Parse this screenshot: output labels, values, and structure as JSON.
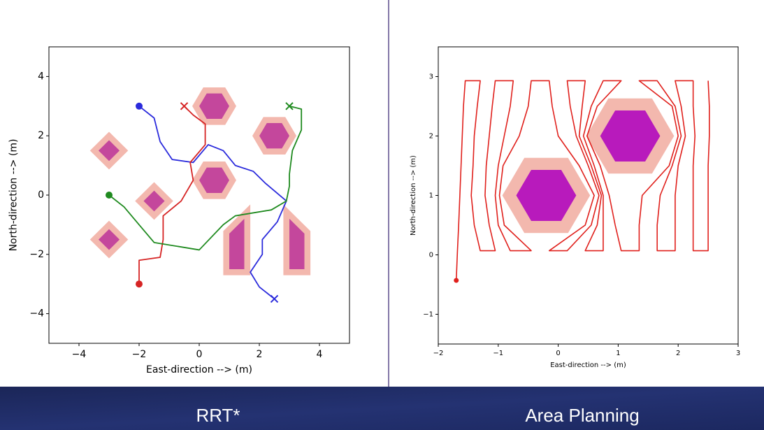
{
  "chart_data": [
    {
      "type": "line",
      "xlabel": "East-direction --> (m)",
      "ylabel": "North-direction --> (m)",
      "xlim": [
        -5,
        5
      ],
      "ylim": [
        -5,
        5
      ],
      "xticks": [
        {
          "value": -4,
          "label": "−4"
        },
        {
          "value": -2,
          "label": "−2"
        },
        0,
        2,
        4
      ],
      "yticks": [
        {
          "value": -4,
          "label": "−4"
        },
        {
          "value": -2,
          "label": "−2"
        },
        0,
        2,
        4
      ],
      "marker_start": "o",
      "marker_end": "x",
      "obstacle_color": "#c4479c",
      "margin_color": "#f3b8ae",
      "margin": 0.2,
      "obstacles": [
        {
          "x": [
            1.0,
            0.75,
            0.25,
            0.0,
            0.25,
            0.75
          ],
          "y": [
            3.0,
            3.43,
            3.43,
            3.0,
            2.57,
            2.57
          ]
        },
        {
          "x": [
            3.0,
            2.75,
            2.25,
            2.0,
            2.25,
            2.75
          ],
          "y": [
            2.0,
            2.43,
            2.43,
            2.0,
            1.57,
            1.57
          ]
        },
        {
          "x": [
            1.0,
            0.75,
            0.25,
            0.0,
            0.25,
            0.75
          ],
          "y": [
            0.5,
            0.93,
            0.93,
            0.5,
            0.07,
            0.07
          ]
        },
        {
          "x": [
            -2.65,
            -3.0,
            -3.35,
            -3.0
          ],
          "y": [
            1.5,
            1.85,
            1.5,
            1.15
          ]
        },
        {
          "x": [
            -1.15,
            -1.5,
            -1.85,
            -1.5
          ],
          "y": [
            -0.2,
            0.15,
            -0.2,
            -0.55
          ]
        },
        {
          "x": [
            -2.65,
            -3.0,
            -3.35,
            -3.0
          ],
          "y": [
            -1.5,
            -1.15,
            -1.5,
            -1.85
          ]
        },
        {
          "x": [
            1.0,
            1.5,
            1.5,
            1.0
          ],
          "y": [
            -2.5,
            -2.5,
            -0.8,
            -1.3
          ]
        },
        {
          "x": [
            3.0,
            3.5,
            3.5,
            3.0
          ],
          "y": [
            -2.5,
            -2.5,
            -1.3,
            -0.8
          ]
        }
      ],
      "series": [
        {
          "color": "#2b2bdc",
          "x": [
            -2,
            -1.5,
            -1.3,
            -0.9,
            -0.2,
            0.3,
            0.8,
            1.2,
            1.8,
            2.2,
            2.9,
            2.6,
            2.1,
            2.1,
            1.7,
            2.0,
            2.5
          ],
          "y": [
            3,
            2.6,
            1.8,
            1.2,
            1.1,
            1.7,
            1.5,
            1.0,
            0.8,
            0.4,
            -0.2,
            -0.9,
            -1.5,
            -2.0,
            -2.6,
            -3.1,
            -3.5
          ]
        },
        {
          "color": "#d62424",
          "x": [
            -2,
            -2,
            -1.3,
            -1.2,
            -1.2,
            -0.6,
            -0.2,
            -0.3,
            0.2,
            0.2,
            -0.2,
            -0.5
          ],
          "y": [
            -3,
            -2.2,
            -2.1,
            -1.5,
            -0.7,
            -0.2,
            0.5,
            1.1,
            1.7,
            2.4,
            2.7,
            3.0
          ]
        },
        {
          "color": "#1f8a1f",
          "x": [
            -3,
            -2.5,
            -2,
            -1.5,
            0,
            0.8,
            1.2,
            2.4,
            2.9,
            3.0,
            3.0,
            3.1,
            3.4,
            3.4,
            3.0
          ],
          "y": [
            0,
            -0.4,
            -1,
            -1.6,
            -1.85,
            -1.0,
            -0.7,
            -0.5,
            -0.2,
            0.3,
            0.7,
            1.5,
            2.2,
            2.9,
            3.0
          ]
        }
      ]
    },
    {
      "type": "line",
      "xlabel": "East-direction --> (m)",
      "ylabel": "North-direction --> (m)",
      "xlim": [
        -2,
        3
      ],
      "ylim": [
        -1.5,
        3.5
      ],
      "xticks": [
        {
          "value": -2,
          "label": "−2"
        },
        {
          "value": -1,
          "label": "−1"
        },
        0,
        1,
        2,
        3
      ],
      "yticks": [
        {
          "value": -1,
          "label": "−1"
        },
        0,
        1,
        2,
        3
      ],
      "marker_start": "o",
      "obstacle_color": "#b81abc",
      "margin_color": "#f3b8ae",
      "margin": 0.2,
      "obstacles": [
        {
          "x": [
            0.3,
            0.05,
            -0.45,
            -0.7,
            -0.45,
            0.05
          ],
          "y": [
            1.0,
            1.43,
            1.43,
            1.0,
            0.57,
            0.57
          ]
        },
        {
          "x": [
            1.7,
            1.45,
            0.95,
            0.7,
            0.95,
            1.45
          ],
          "y": [
            2.0,
            2.43,
            2.43,
            2.0,
            1.57,
            1.57
          ]
        }
      ],
      "series": [
        {
          "color": "#e0201c",
          "x": [
            -1.7,
            -1.68,
            -1.66,
            -1.64,
            -1.62,
            -1.6,
            -1.58,
            -1.55,
            -1.3,
            -1.35,
            -1.4,
            -1.42,
            -1.45,
            -1.4,
            -1.3,
            -1.05,
            -1.15,
            -1.22,
            -1.2,
            -1.15,
            -1.1,
            -1.05,
            -0.75,
            -0.8,
            -0.9,
            -1.0,
            -1.05,
            -1.0,
            -0.8,
            -0.45,
            -0.9,
            -0.98,
            -0.92,
            -0.65,
            -0.5,
            -0.45,
            -0.15,
            -0.1,
            0.0,
            0.35,
            0.6,
            0.45,
            -0.15,
            0.15,
            0.55,
            0.68,
            0.5,
            0.3,
            0.2,
            0.15,
            0.45,
            0.4,
            0.35,
            0.55,
            0.72,
            0.65,
            0.45,
            0.75,
            0.75,
            0.75,
            0.6,
            0.42,
            0.55,
            0.75,
            1.05,
            0.65,
            0.48,
            0.7,
            0.85,
            0.95,
            1.05,
            1.35,
            1.35,
            1.4,
            1.85,
            2.0,
            1.9,
            1.35,
            1.65,
            1.95,
            2.05,
            1.9,
            1.7,
            1.65,
            1.65,
            1.95,
            1.95,
            1.95,
            2.0,
            2.12,
            2.05,
            1.95,
            2.25,
            2.25,
            2.28,
            2.25,
            2.25,
            2.25,
            2.25,
            2.5,
            2.5,
            2.5,
            2.5,
            2.52,
            2.52,
            2.5
          ],
          "y": [
            -0.43,
            0.07,
            0.5,
            1.0,
            1.5,
            2.0,
            2.5,
            2.93,
            2.93,
            2.5,
            2.0,
            1.5,
            1.0,
            0.5,
            0.07,
            0.07,
            0.5,
            1.0,
            1.5,
            2.0,
            2.5,
            2.93,
            2.93,
            2.5,
            2.0,
            1.5,
            1.0,
            0.5,
            0.07,
            0.07,
            0.5,
            1.0,
            1.5,
            2.0,
            2.5,
            2.93,
            2.93,
            2.5,
            2.0,
            1.5,
            1.0,
            0.5,
            0.07,
            0.07,
            0.5,
            1.0,
            1.5,
            2.0,
            2.5,
            2.93,
            2.93,
            2.5,
            2.0,
            1.5,
            1.0,
            0.5,
            0.07,
            0.07,
            0.5,
            1.0,
            1.5,
            2.0,
            2.5,
            2.93,
            2.93,
            2.5,
            2.0,
            1.5,
            1.0,
            0.5,
            0.07,
            0.07,
            0.5,
            1.0,
            1.5,
            2.0,
            2.5,
            2.93,
            2.93,
            2.5,
            2.0,
            1.5,
            1.0,
            0.5,
            0.07,
            0.07,
            0.5,
            1.0,
            1.5,
            2.0,
            2.5,
            2.93,
            2.93,
            2.5,
            2.0,
            1.5,
            1.0,
            0.5,
            0.07,
            0.07,
            0.5,
            1.0,
            1.5,
            2.0,
            2.5,
            2.93
          ]
        }
      ]
    }
  ],
  "captions": [
    "RRT*",
    "Area Planning"
  ]
}
